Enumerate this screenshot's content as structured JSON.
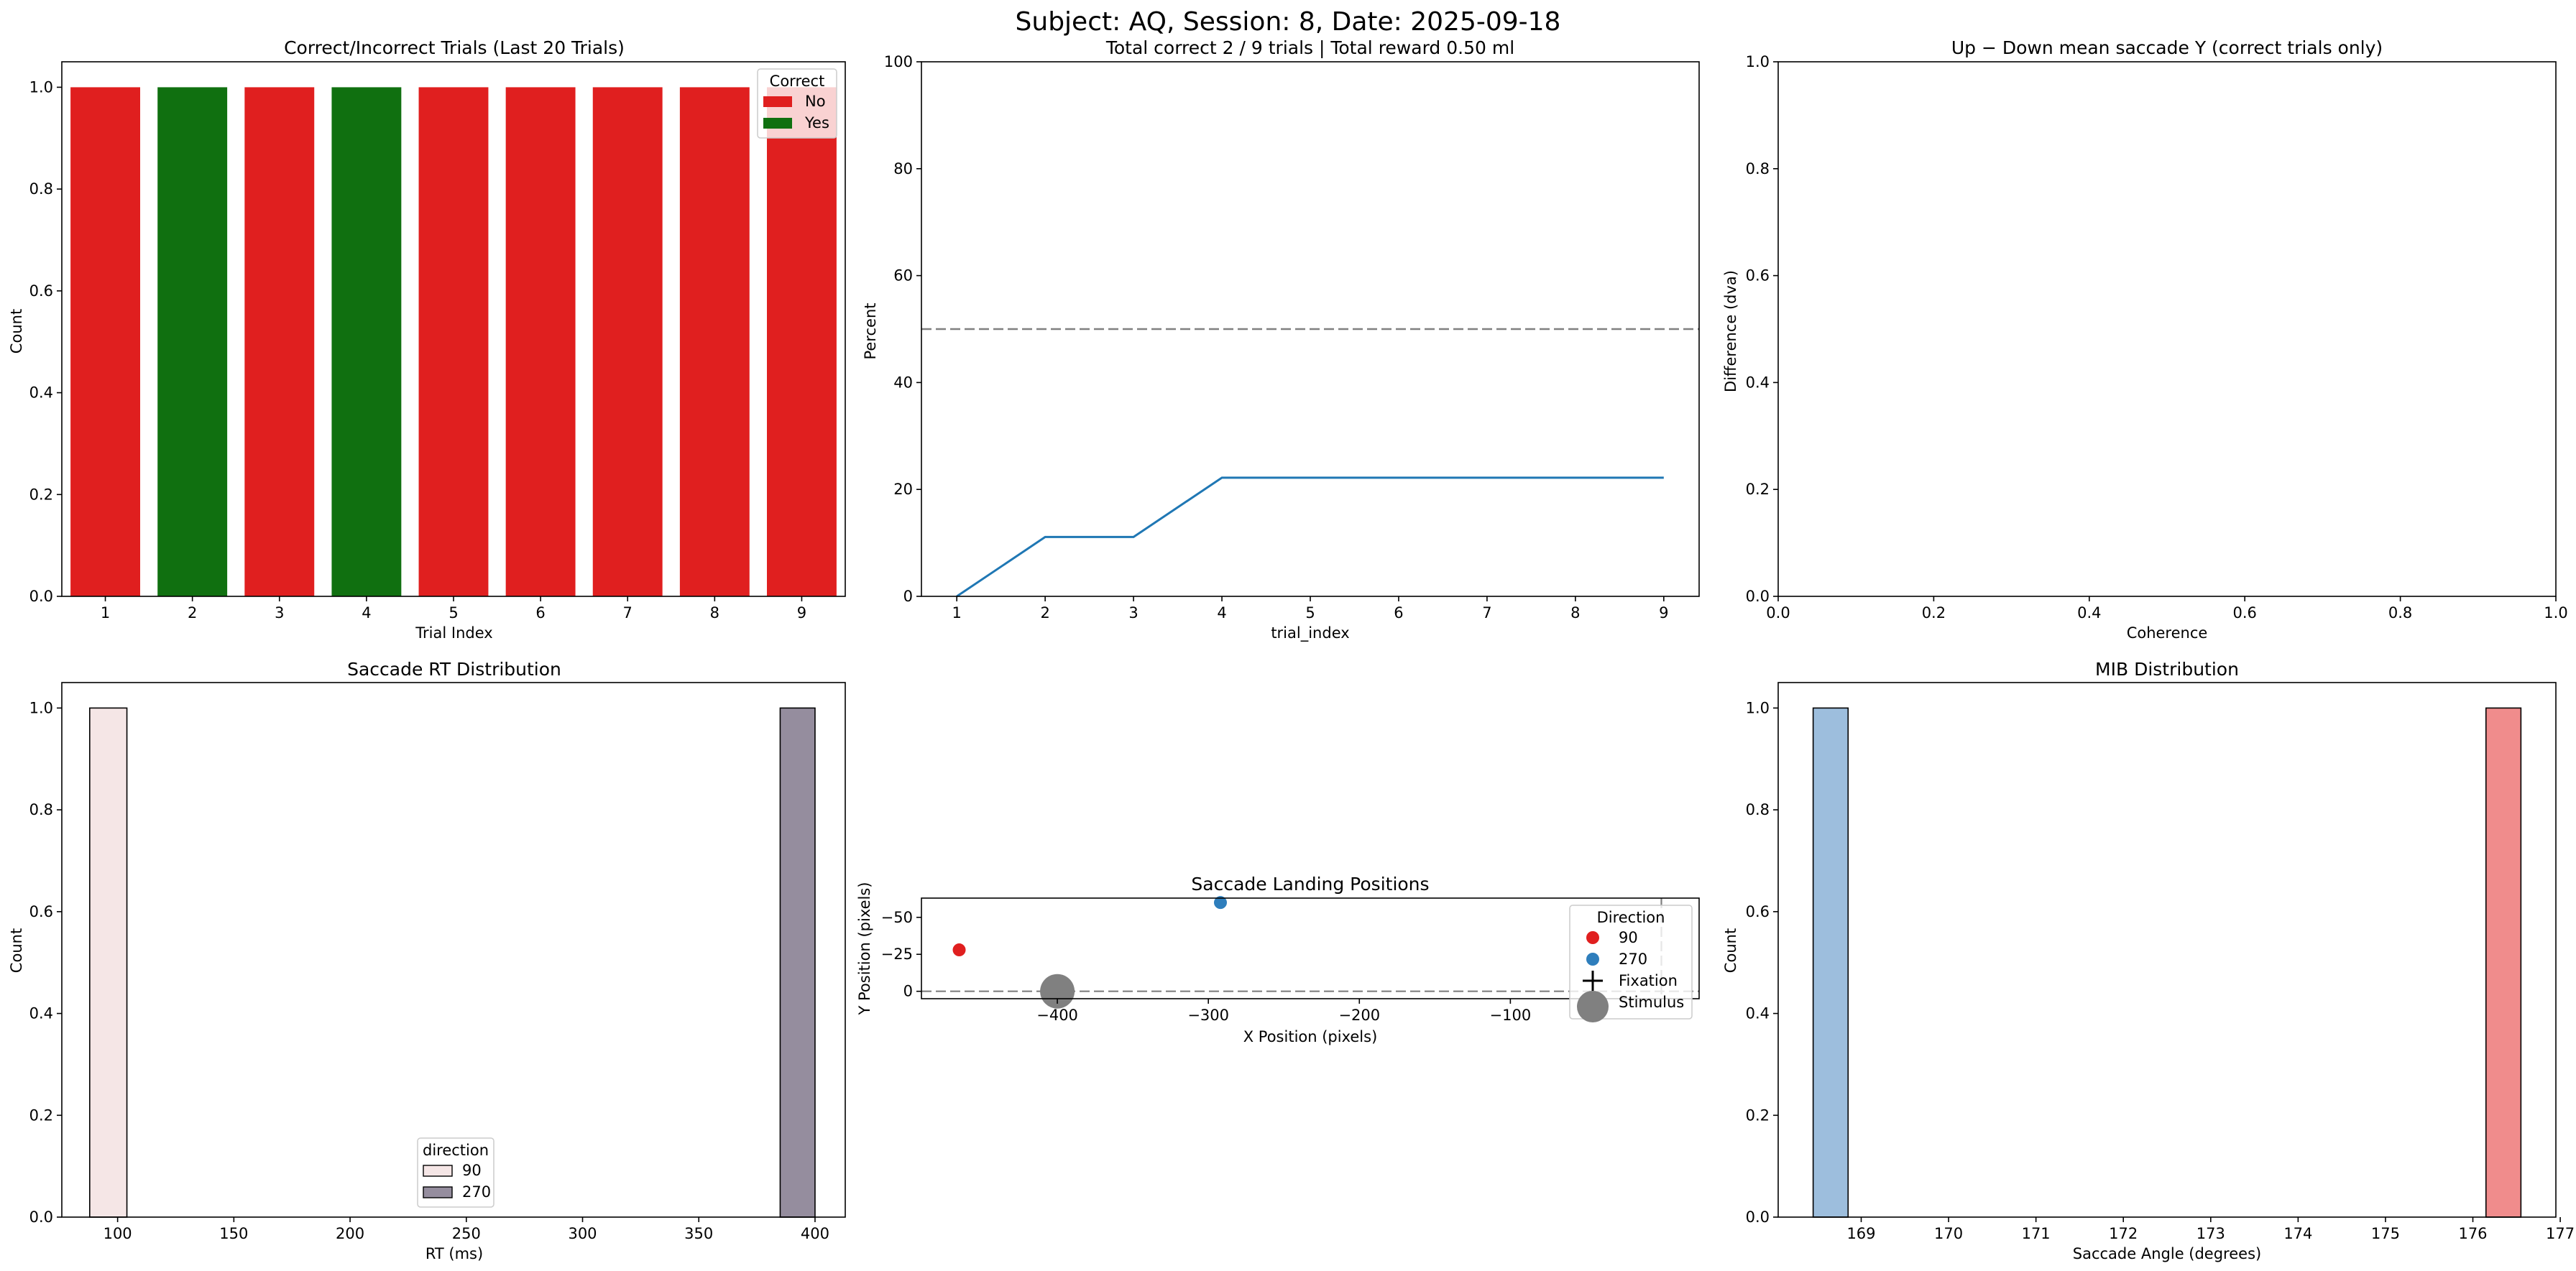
{
  "suptitle": "Subject: AQ, Session: 8, Date: 2025-09-18",
  "chart_data": [
    {
      "id": "correct_trials",
      "type": "bar",
      "title": "Correct/Incorrect Trials (Last 20 Trials)",
      "xlabel": "Trial Index",
      "ylabel": "Count",
      "categories": [
        "1",
        "2",
        "3",
        "4",
        "5",
        "6",
        "7",
        "8",
        "9"
      ],
      "values": [
        1,
        1,
        1,
        1,
        1,
        1,
        1,
        1,
        1
      ],
      "correct": [
        "No",
        "Yes",
        "No",
        "Yes",
        "No",
        "No",
        "No",
        "No",
        "No"
      ],
      "ylim": [
        0,
        1.05
      ],
      "yticks": [
        "0.0",
        "0.2",
        "0.4",
        "0.6",
        "0.8",
        "1.0"
      ],
      "legend": {
        "title": "Correct",
        "placement": "top-right",
        "entries": [
          {
            "label": "No",
            "color": "#e01f1f"
          },
          {
            "label": "Yes",
            "color": "#107010"
          }
        ]
      }
    },
    {
      "id": "percent_correct",
      "type": "line",
      "title": "Total correct 2 / 9 trials | Total reward 0.50 ml",
      "xlabel": "trial_index",
      "ylabel": "Percent",
      "x": [
        1,
        2,
        3,
        4,
        5,
        6,
        7,
        8,
        9
      ],
      "y": [
        0,
        11.1,
        11.1,
        22.2,
        22.2,
        22.2,
        22.2,
        22.2,
        22.2
      ],
      "xticks": [
        "1",
        "2",
        "3",
        "4",
        "5",
        "6",
        "7",
        "8",
        "9"
      ],
      "yticks": [
        "0",
        "20",
        "40",
        "60",
        "80",
        "100"
      ],
      "ylim": [
        0,
        100
      ],
      "reference_line": 50,
      "color": "#1f77b4"
    },
    {
      "id": "up_down_diff",
      "type": "line",
      "title": "Up − Down mean saccade Y (correct trials only)",
      "xlabel": "Coherence",
      "ylabel": "Difference (dva)",
      "xlim": [
        0,
        1
      ],
      "ylim": [
        0,
        1
      ],
      "xticks": [
        "0.0",
        "0.2",
        "0.4",
        "0.6",
        "0.8",
        "1.0"
      ],
      "yticks": [
        "0.0",
        "0.2",
        "0.4",
        "0.6",
        "0.8",
        "1.0"
      ]
    },
    {
      "id": "rt_hist",
      "type": "bar",
      "title": "Saccade RT Distribution",
      "xlabel": "RT (ms)",
      "ylabel": "Count",
      "bins": [
        {
          "from": 88,
          "to": 104,
          "count": 1,
          "direction": "90",
          "color": "#f5e6e6"
        },
        {
          "from": 385,
          "to": 400,
          "count": 1,
          "direction": "270",
          "color": "#958d9e"
        }
      ],
      "xlim": [
        76,
        413
      ],
      "ylim": [
        0,
        1.05
      ],
      "xticks": [
        "100",
        "150",
        "200",
        "250",
        "300",
        "350",
        "400"
      ],
      "yticks": [
        "0.0",
        "0.2",
        "0.4",
        "0.6",
        "0.8",
        "1.0"
      ],
      "legend": {
        "title": "direction",
        "placement": "lower-center",
        "entries": [
          {
            "label": "90",
            "color": "#f5e6e6"
          },
          {
            "label": "270",
            "color": "#958d9e"
          }
        ]
      }
    },
    {
      "id": "landing",
      "type": "scatter",
      "title": "Saccade Landing Positions",
      "xlabel": "X Position (pixels)",
      "ylabel": "Y Position (pixels)",
      "points": [
        {
          "x": -465,
          "y": -28,
          "direction": "90",
          "color": "#e01f1f"
        },
        {
          "x": -292,
          "y": -60,
          "direction": "270",
          "color": "#2e7ebc"
        }
      ],
      "fixation": {
        "x": 0,
        "y": 0
      },
      "stimulus": {
        "x": -400,
        "y": 0,
        "color": "#808080"
      },
      "xlim": [
        -490,
        25
      ],
      "ylim_inverted": [
        5,
        -63
      ],
      "xticks": [
        "−400",
        "−300",
        "−200",
        "−100"
      ],
      "yticks": [
        "−50",
        "−25",
        "0"
      ],
      "legend": {
        "title": "Direction",
        "placement": "top-right",
        "entries": [
          {
            "label": "90",
            "color": "#e01f1f",
            "marker": "dot"
          },
          {
            "label": "270",
            "color": "#2e7ebc",
            "marker": "dot"
          },
          {
            "label": "Fixation",
            "color": "#000000",
            "marker": "cross"
          },
          {
            "label": "Stimulus",
            "color": "#808080",
            "marker": "big-dot"
          }
        ]
      }
    },
    {
      "id": "mib_hist",
      "type": "bar",
      "title": "MIB Distribution",
      "xlabel": "Saccade Angle (degrees)",
      "ylabel": "Count",
      "bins": [
        {
          "from": 168.45,
          "to": 168.85,
          "count": 1,
          "color": "#9dbedd"
        },
        {
          "from": 176.15,
          "to": 176.55,
          "count": 1,
          "color": "#f08c8c"
        }
      ],
      "xlim": [
        168.05,
        176.95
      ],
      "ylim": [
        0,
        1.05
      ],
      "xticks": [
        "169",
        "170",
        "171",
        "172",
        "173",
        "174",
        "175",
        "176",
        "177"
      ],
      "yticks": [
        "0.0",
        "0.2",
        "0.4",
        "0.6",
        "0.8",
        "1.0"
      ]
    }
  ]
}
